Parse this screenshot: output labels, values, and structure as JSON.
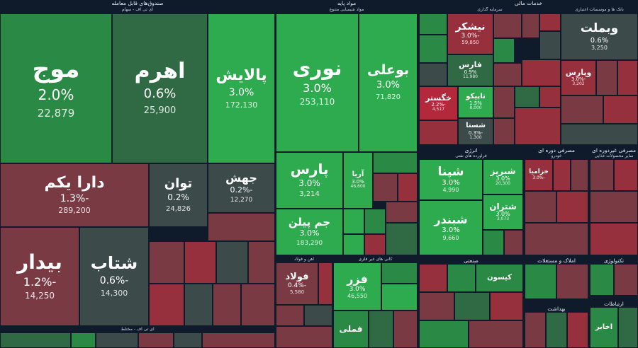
{
  "sectors": {
    "funds": "صندوق‌های قابل معامله",
    "base_metals_a": "مواد پایه",
    "financial": "خدمات مالی",
    "energy": "انرژی",
    "consumer_cyclical": "مصرفی دوره ای",
    "consumer_noncyclical": "مصرفی غیردوره ای",
    "industrial": "صنعتی",
    "real_estate": "املاک و مستغلات",
    "technology": "تکنولوژی",
    "healthcare": "بهداشت",
    "telecom": "ارتباطات"
  },
  "subsectors": {
    "funds_equity": "ای تی اف - سهام",
    "funds_mixed": "ای تی اف - مختلط",
    "chemical": "مواد شیمیایی متنوع",
    "iron_steel": "آهن و فولاد",
    "nonmetal_minerals": "کانی های غیر فلزی",
    "insurance": "سرمایه گذاری",
    "banks": "بانک ها و موسسات اعتباری",
    "oil_products": "فرآورده های نفتی",
    "auto": "خودرو",
    "food": "سایر محصولات غذایی"
  },
  "tiles": {
    "moj": {
      "name": "موج",
      "pct": "2.0%",
      "val": "22,879"
    },
    "ahrom": {
      "name": "اهرم",
      "pct": "0.6%",
      "val": "25,900"
    },
    "palaysh": {
      "name": "پالایش",
      "pct": "3.0%",
      "val": "172,130"
    },
    "daraykom": {
      "name": "دارا یکم",
      "pct": "-1.3%",
      "val": "289,200"
    },
    "tavan": {
      "name": "توان",
      "pct": "0.2%",
      "val": "24,826"
    },
    "jahesh": {
      "name": "جهش",
      "pct": "-0.2%",
      "val": "12,270"
    },
    "bidar": {
      "name": "بیدار",
      "pct": "-1.2%",
      "val": "14,250"
    },
    "shetab": {
      "name": "شتاب",
      "pct": "-0.6%",
      "val": "14,300"
    },
    "noori": {
      "name": "نوری",
      "pct": "3.0%",
      "val": "253,110"
    },
    "buali": {
      "name": "بوعلی",
      "pct": "3.0%",
      "val": "71,820"
    },
    "pars": {
      "name": "پارس",
      "pct": "3.0%",
      "val": "3,214"
    },
    "jampilen": {
      "name": "جم پیلن",
      "pct": "3.0%",
      "val": "183,290"
    },
    "fooladh": {
      "name": "فولاد",
      "pct": "-0.4%",
      "val": "5,580"
    },
    "fezar": {
      "name": "فزر",
      "pct": "3.0%",
      "val": "46,550"
    },
    "vabemellat": {
      "name": "وبملت",
      "pct": "0.6%",
      "val": "3,250"
    },
    "nishkar": {
      "name": "نیشکر",
      "pct": "-3.0%",
      "val": "59,850"
    },
    "shapna": {
      "name": "شپنا",
      "pct": "3.0%",
      "val": "4,990"
    },
    "shabriz": {
      "name": "شبریز",
      "pct": "3.0%",
      "val": "20,300"
    },
    "shatran": {
      "name": "شتران",
      "pct": "3.0%",
      "val": "3,073"
    },
    "shabandar": {
      "name": "شبندر",
      "pct": "3.0%",
      "val": "9,660"
    },
    "vapars": {
      "name": "وپارس",
      "pct": "-3.0%",
      "val": "3,202"
    },
    "khazamia": {
      "name": "خزامیا",
      "pct": "-3.0%",
      "val": ""
    },
    "arya": {
      "name": "آریا",
      "pct": "3.0%",
      "val": "46,600"
    },
    "shasta": {
      "name": "شستا",
      "pct": "-0.3%",
      "val": "1,300"
    },
    "tapiko": {
      "name": "تاپیکو",
      "pct": "1.5%",
      "val": "8,000"
    },
    "khagostar": {
      "name": "خگستر",
      "pct": "-2.2%",
      "val": "4,517"
    },
    "fars": {
      "name": "فارس",
      "pct": "0.9%",
      "val": "11,980"
    },
    "akhaber": {
      "name": "اخابر",
      "pct": "",
      "val": ""
    },
    "famli": {
      "name": "فملی",
      "pct": "",
      "val": ""
    },
    "kisun": {
      "name": "کیسون",
      "pct": "",
      "val": ""
    }
  }
}
